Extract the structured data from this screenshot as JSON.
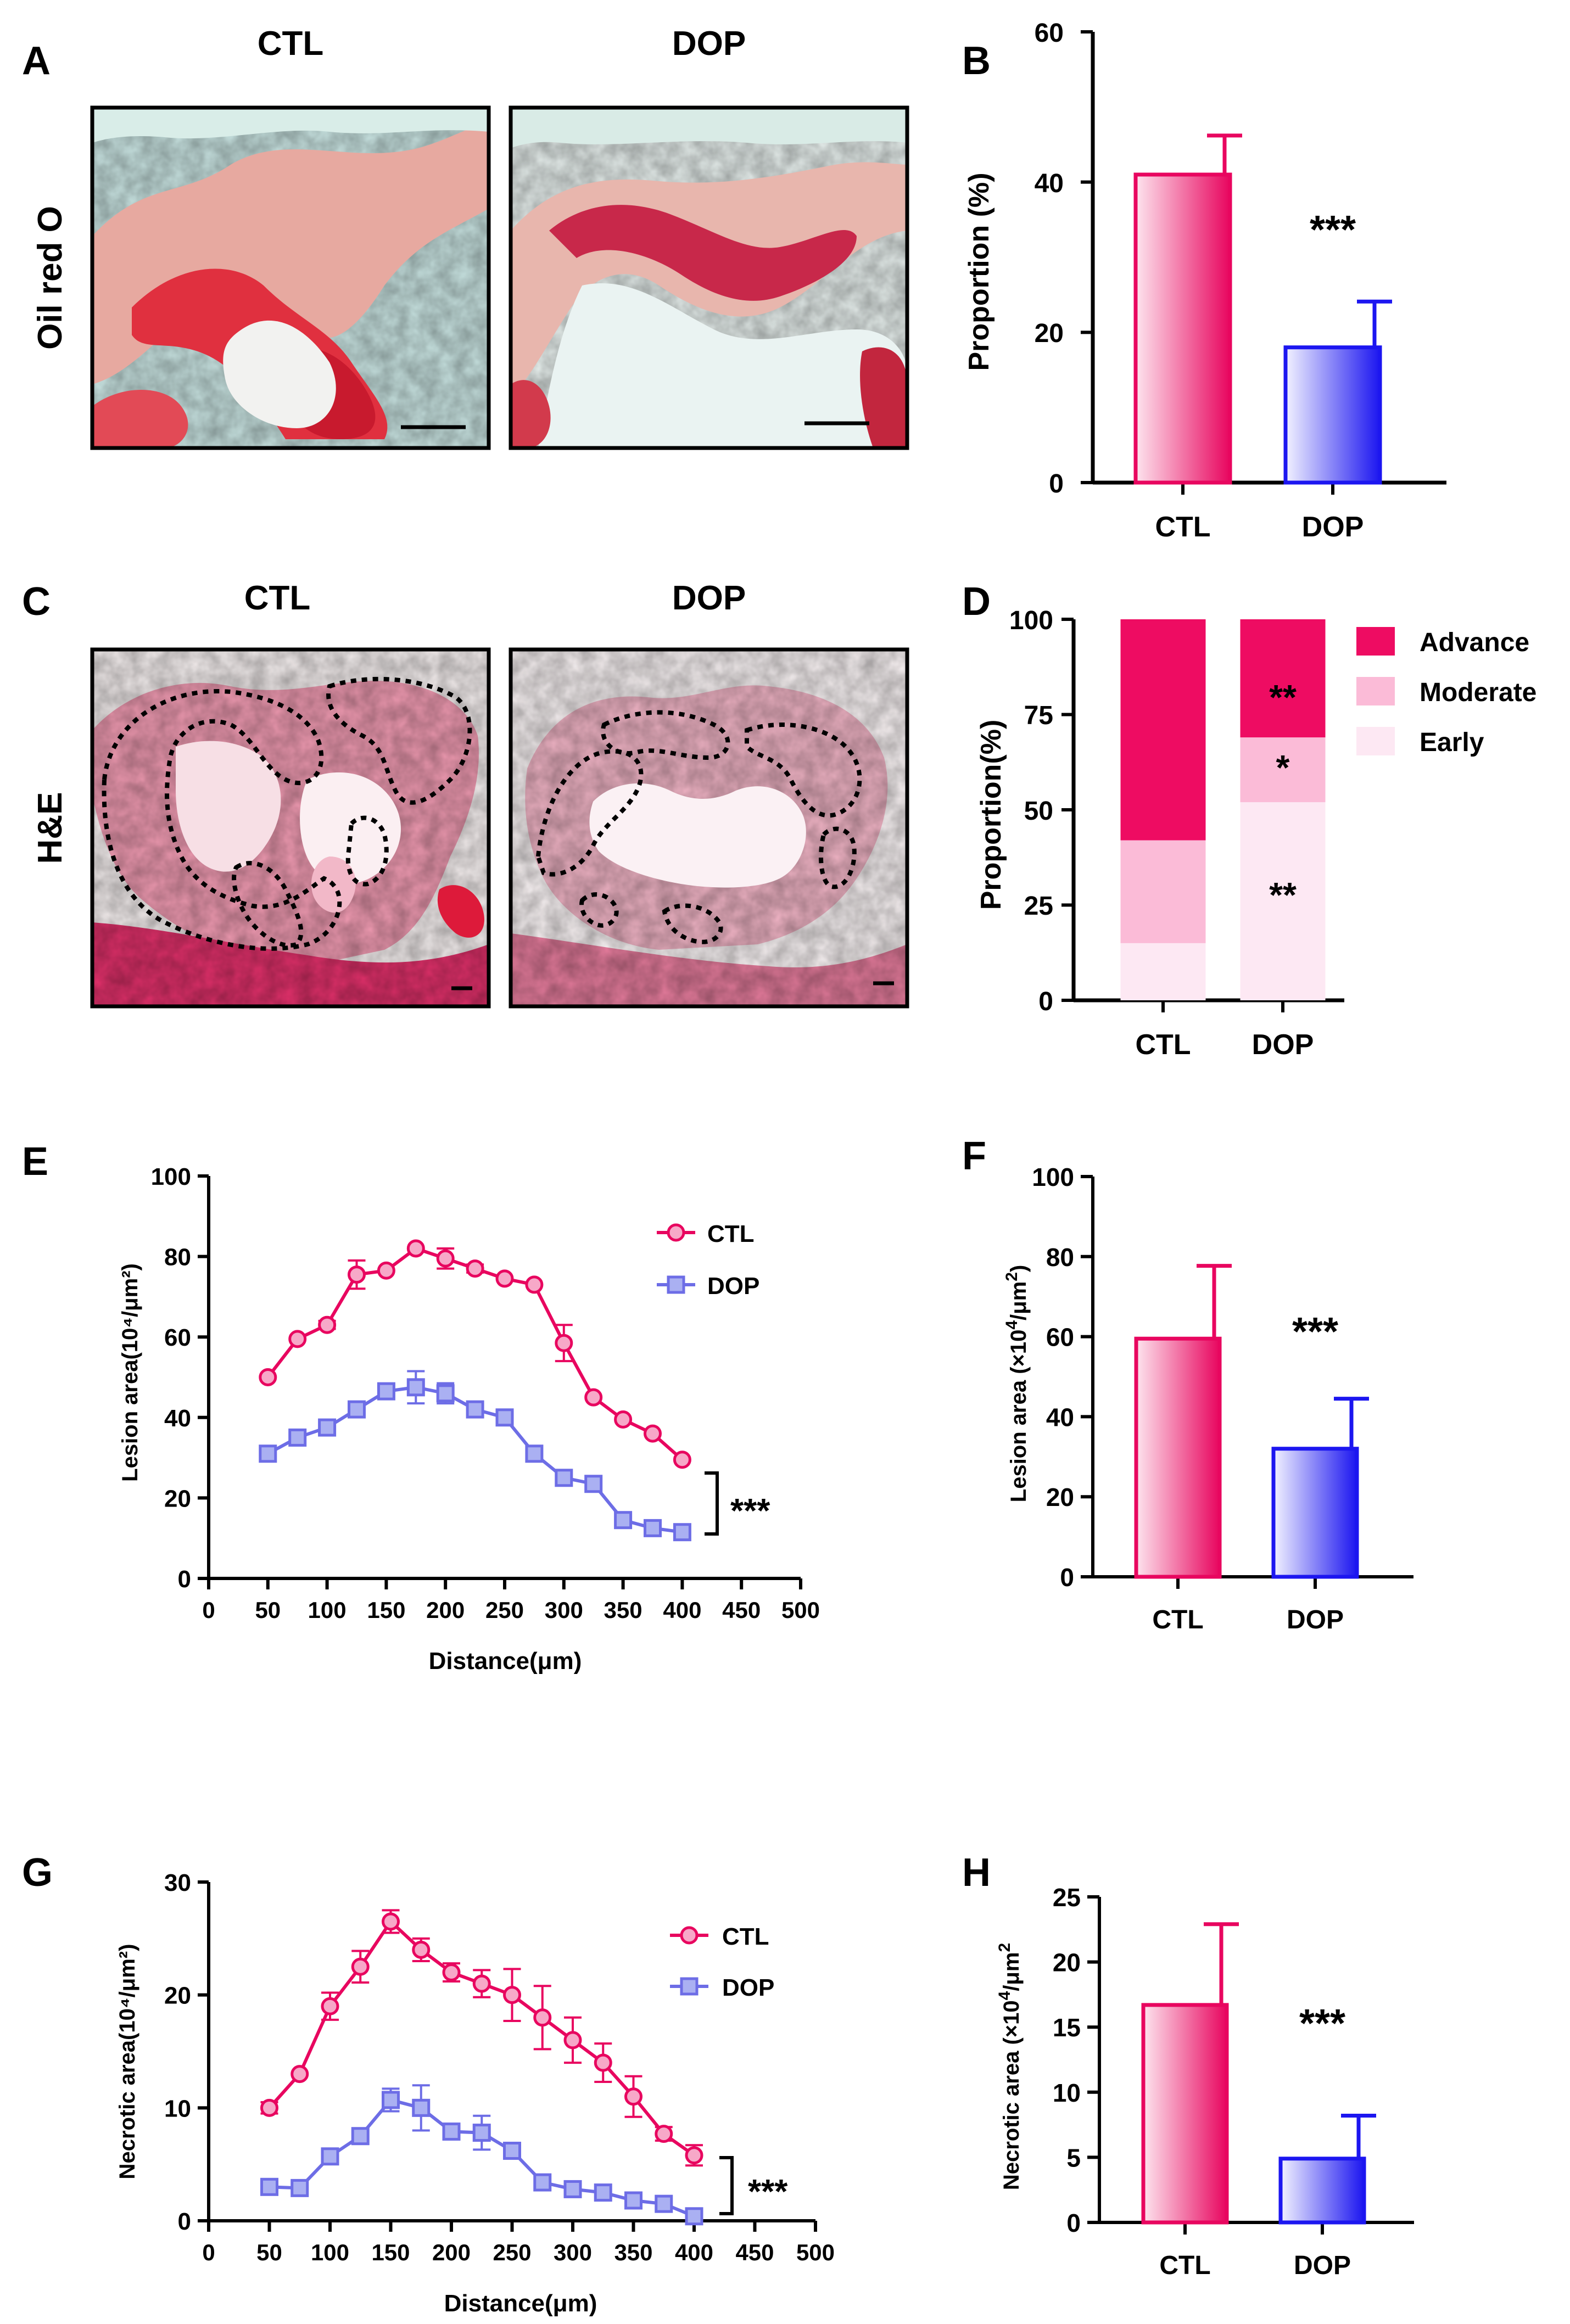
{
  "colors": {
    "ctl_dark": "#e8065f",
    "ctl_light": "#fde4ee",
    "dop_dark": "#1c16f0",
    "dop_light": "#f2f2ff",
    "dop_line": "#6d6de6",
    "dop_marker": "#aab0f2",
    "ctl_marker": "#f7a8c8",
    "advance": "#ee0c62",
    "moderate": "#fbbbd7",
    "early": "#fde8f3"
  },
  "panel_a": {
    "letter": "A",
    "col_ctl": "CTL",
    "col_dop": "DOP",
    "row_label": "Oil red O"
  },
  "panel_c": {
    "letter": "C",
    "col_ctl": "CTL",
    "col_dop": "DOP",
    "row_label": "H&E"
  },
  "chart_data": [
    {
      "id": "B",
      "type": "bar",
      "letter": "B",
      "categories": [
        "CTL",
        "DOP"
      ],
      "values": [
        41,
        18
      ],
      "errors": [
        5.2,
        6.1
      ],
      "ylabel": "Proportion (%)",
      "ylim": [
        0,
        60
      ],
      "yticks": [
        "0",
        "20",
        "40",
        "60"
      ],
      "significance": "***"
    },
    {
      "id": "D",
      "type": "bar",
      "stacked": true,
      "letter": "D",
      "categories": [
        "CTL",
        "DOP"
      ],
      "series": [
        {
          "name": "Early",
          "values": [
            15,
            52
          ]
        },
        {
          "name": "Moderate",
          "values": [
            27,
            17
          ]
        },
        {
          "name": "Advance",
          "values": [
            58,
            31
          ]
        }
      ],
      "legend": [
        "Advance",
        "Moderate",
        "Early"
      ],
      "ylabel": "Proportion(%)",
      "ylim": [
        0,
        100
      ],
      "yticks": [
        "0",
        "25",
        "50",
        "75",
        "100"
      ],
      "dop_annotations": {
        "Advance": "**",
        "Moderate": "*",
        "Early": "**"
      }
    },
    {
      "id": "E",
      "type": "line",
      "letter": "E",
      "x": [
        50,
        75,
        100,
        125,
        150,
        175,
        200,
        225,
        250,
        275,
        300,
        325,
        350,
        375,
        400
      ],
      "series": [
        {
          "name": "CTL",
          "values": [
            50,
            59.5,
            63,
            75.5,
            76.5,
            82,
            79.5,
            77,
            74.5,
            73,
            58.5,
            45,
            39.5,
            36,
            29.5
          ],
          "errors": [
            0,
            0,
            1,
            3.5,
            0,
            0,
            2.5,
            1,
            0,
            0,
            4.5,
            0,
            0,
            0,
            0
          ]
        },
        {
          "name": "DOP",
          "values": [
            31,
            35,
            37.5,
            42,
            46.5,
            47.5,
            46,
            42,
            40,
            31,
            25,
            23.5,
            14.5,
            12.5,
            11.5
          ],
          "errors": [
            0,
            0,
            0,
            0,
            0,
            4,
            2.5,
            0,
            0,
            0,
            0,
            0,
            0,
            0,
            0
          ]
        }
      ],
      "xlabel": "Distance(μm)",
      "ylabel": "Lesion area(10⁴/μm²)",
      "xlim": [
        0,
        500
      ],
      "ylim": [
        0,
        100
      ],
      "xticks": [
        "0",
        "50",
        "100",
        "150",
        "200",
        "250",
        "300",
        "350",
        "400",
        "450",
        "500"
      ],
      "yticks": [
        "0",
        "20",
        "40",
        "60",
        "80",
        "100"
      ],
      "significance": "***"
    },
    {
      "id": "F",
      "type": "bar",
      "letter": "F",
      "categories": [
        "CTL",
        "DOP"
      ],
      "values": [
        59.5,
        32
      ],
      "errors": [
        18.2,
        12.5
      ],
      "ylabel_main": "Lesion area (×10",
      "ylabel_sup1": "4",
      "ylabel_mid": "/μm",
      "ylabel_sup2": "2",
      "ylabel_end": ")",
      "ylim": [
        0,
        100
      ],
      "yticks": [
        "0",
        "20",
        "40",
        "60",
        "80",
        "100"
      ],
      "significance": "***"
    },
    {
      "id": "G",
      "type": "line",
      "letter": "G",
      "x": [
        50,
        75,
        100,
        125,
        150,
        175,
        200,
        225,
        250,
        275,
        300,
        325,
        350,
        375,
        400
      ],
      "series": [
        {
          "name": "CTL",
          "values": [
            10,
            13,
            19,
            22.5,
            26.5,
            24,
            22,
            21,
            20,
            18,
            16,
            14,
            11,
            7.7,
            5.8
          ],
          "errors": [
            0.5,
            0,
            1.2,
            1.4,
            1,
            1,
            0.8,
            1.2,
            2.3,
            2.8,
            2,
            1.7,
            1.8,
            0.6,
            0.9
          ]
        },
        {
          "name": "DOP",
          "values": [
            3,
            2.9,
            5.7,
            7.5,
            10.7,
            10,
            7.9,
            7.8,
            6.2,
            3.4,
            2.8,
            2.5,
            1.8,
            1.5,
            0.4
          ],
          "errors": [
            0,
            0,
            0,
            0,
            1,
            2,
            0,
            1.5,
            0,
            0,
            0,
            0,
            0,
            0,
            0
          ]
        }
      ],
      "xlabel": "Distance(μm)",
      "ylabel": "Necrotic area(10⁴/μm²)",
      "xlim": [
        0,
        500
      ],
      "ylim": [
        0,
        30
      ],
      "xticks": [
        "0",
        "50",
        "100",
        "150",
        "200",
        "250",
        "300",
        "350",
        "400",
        "450",
        "500"
      ],
      "yticks": [
        "0",
        "10",
        "20",
        "30"
      ],
      "significance": "***"
    },
    {
      "id": "H",
      "type": "bar",
      "letter": "H",
      "categories": [
        "CTL",
        "DOP"
      ],
      "values": [
        16.7,
        4.9
      ],
      "errors": [
        6.2,
        3.3
      ],
      "ylabel_main": "Necrotic area (×10",
      "ylabel_sup1": "4",
      "ylabel_mid": "/μm",
      "ylabel_sup2": "2",
      "ylabel_end": "",
      "ylim": [
        0,
        25
      ],
      "yticks": [
        "0",
        "5",
        "10",
        "15",
        "20",
        "25"
      ],
      "significance": "***"
    }
  ]
}
